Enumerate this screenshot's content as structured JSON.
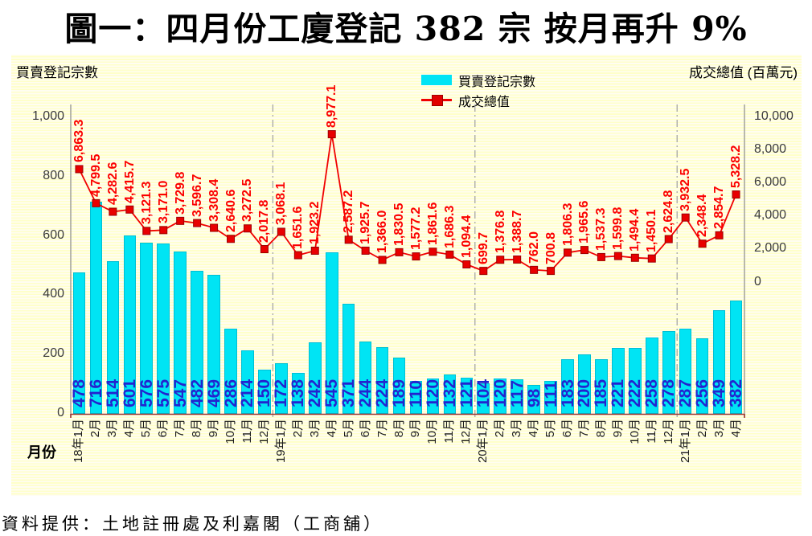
{
  "title": "圖一：四月份工廈登記 382 宗  按月再升 9%",
  "axes": {
    "left_title": "買賣登記宗數",
    "right_title": "成交總值 (百萬元)",
    "x_title": "月份",
    "left_ticks": [
      "1,000",
      "800",
      "600",
      "400",
      "200",
      "0"
    ],
    "right_ticks": [
      "10,000",
      "8,000",
      "6,000",
      "4,000",
      "2,000",
      "0"
    ]
  },
  "legend": [
    {
      "label": "買賣登記宗數",
      "type": "bar",
      "color": "#00e4f4"
    },
    {
      "label": "成交總值",
      "type": "line",
      "color": "#f00000"
    }
  ],
  "footer": "資料提供：土地註冊處及利嘉閣（工商舖）",
  "colors": {
    "bar_fill": "#00e4f4",
    "bar_label": "#2323cf",
    "line": "#f00000",
    "line_label": "#fb0000",
    "axis_gray": "#8a8a8a",
    "axis_bottom": "#993333",
    "separator": "#a0a0a0"
  },
  "chart_data": {
    "type": "bar+line",
    "title": "圖一：四月份工廈登記 382 宗  按月再升 9%",
    "categories": [
      "18年1月",
      "2月",
      "3月",
      "4月",
      "5月",
      "6月",
      "7月",
      "8月",
      "9月",
      "10月",
      "11月",
      "12月",
      "19年1月",
      "2月",
      "3月",
      "4月",
      "5月",
      "6月",
      "7月",
      "8月",
      "9月",
      "10月",
      "11月",
      "12月",
      "20年1月",
      "2月",
      "3月",
      "4月",
      "5月",
      "6月",
      "7月",
      "8月",
      "9月",
      "10月",
      "11月",
      "12月",
      "21年1月",
      "2月",
      "3月",
      "4月"
    ],
    "series": [
      {
        "name": "買賣登記宗數",
        "type": "bar",
        "axis": "left",
        "values": [
          478,
          716,
          514,
          601,
          576,
          575,
          547,
          482,
          469,
          286,
          214,
          150,
          172,
          138,
          242,
          545,
          371,
          244,
          224,
          189,
          110,
          120,
          132,
          121,
          104,
          120,
          117,
          98,
          111,
          183,
          200,
          185,
          221,
          222,
          258,
          278,
          287,
          256,
          349,
          382
        ]
      },
      {
        "name": "成交總值",
        "type": "line",
        "axis": "right",
        "values": [
          6863.3,
          4799.5,
          4282.6,
          4415.7,
          3121.3,
          3171.0,
          3729.8,
          3596.7,
          3308.4,
          2640.6,
          3272.5,
          2017.8,
          3068.1,
          1651.6,
          1923.2,
          8977.1,
          2587.2,
          1925.7,
          1366.0,
          1830.5,
          1577.2,
          1861.6,
          1686.3,
          1094.4,
          699.7,
          1376.8,
          1388.7,
          762.0,
          700.8,
          1806.3,
          1965.6,
          1537.3,
          1599.8,
          1494.4,
          1450.1,
          2624.8,
          3932.5,
          2348.4,
          2854.7,
          5328.2
        ]
      }
    ],
    "left_axis": {
      "label": "買賣登記宗數",
      "min": 0,
      "max": 1000,
      "tick_step": 200
    },
    "right_axis": {
      "label": "成交總值 (百萬元)",
      "min": 0,
      "max": 10000,
      "tick_step": 2000
    },
    "xlabel": "月份",
    "legend_position": "top-center",
    "grid": false,
    "year_separators_after": [
      11,
      23,
      35
    ]
  }
}
